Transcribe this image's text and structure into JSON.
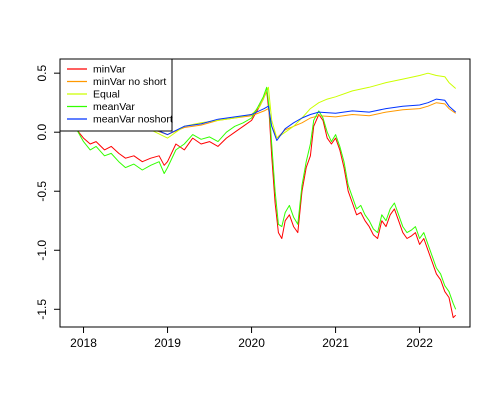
{
  "chart_data": {
    "type": "line",
    "title": "",
    "xlabel": "",
    "ylabel": "",
    "xlim": [
      2017.72,
      2022.6
    ],
    "ylim": [
      -1.65,
      0.62
    ],
    "x_ticks": [
      2018,
      2019,
      2020,
      2021,
      2022
    ],
    "x_tick_labels": [
      "2018",
      "2019",
      "2020",
      "2021",
      "2022"
    ],
    "y_ticks": [
      -1.5,
      -1.0,
      -0.5,
      0.0,
      0.5
    ],
    "y_tick_labels": [
      "-1.5",
      "-1.0",
      "-0.5",
      "0.0",
      "0.5"
    ],
    "grid": false,
    "legend_position": "top-left",
    "series": [
      {
        "name": "minVar",
        "color": "#ff0000",
        "x": [
          2017.92,
          2018.0,
          2018.08,
          2018.15,
          2018.25,
          2018.33,
          2018.42,
          2018.5,
          2018.6,
          2018.7,
          2018.8,
          2018.9,
          2018.96,
          2019.0,
          2019.1,
          2019.2,
          2019.3,
          2019.4,
          2019.5,
          2019.6,
          2019.7,
          2019.8,
          2019.9,
          2020.0,
          2020.08,
          2020.14,
          2020.18,
          2020.21,
          2020.24,
          2020.28,
          2020.32,
          2020.36,
          2020.4,
          2020.45,
          2020.5,
          2020.55,
          2020.6,
          2020.65,
          2020.7,
          2020.74,
          2020.8,
          2020.85,
          2020.9,
          2020.95,
          2021.0,
          2021.05,
          2021.1,
          2021.15,
          2021.2,
          2021.25,
          2021.3,
          2021.35,
          2021.4,
          2021.45,
          2021.5,
          2021.55,
          2021.6,
          2021.65,
          2021.7,
          2021.75,
          2021.8,
          2021.85,
          2021.9,
          2021.95,
          2022.0,
          2022.05,
          2022.1,
          2022.15,
          2022.2,
          2022.25,
          2022.3,
          2022.35,
          2022.4,
          2022.43
        ],
        "y": [
          0.02,
          -0.05,
          -0.1,
          -0.08,
          -0.15,
          -0.12,
          -0.18,
          -0.22,
          -0.2,
          -0.25,
          -0.22,
          -0.2,
          -0.28,
          -0.25,
          -0.1,
          -0.15,
          -0.05,
          -0.1,
          -0.08,
          -0.12,
          -0.05,
          0.0,
          0.05,
          0.1,
          0.2,
          0.28,
          0.35,
          0.15,
          -0.2,
          -0.6,
          -0.85,
          -0.9,
          -0.75,
          -0.7,
          -0.8,
          -0.85,
          -0.5,
          -0.3,
          -0.2,
          0.05,
          0.15,
          0.1,
          -0.05,
          -0.1,
          -0.05,
          -0.15,
          -0.3,
          -0.5,
          -0.6,
          -0.7,
          -0.68,
          -0.75,
          -0.8,
          -0.87,
          -0.9,
          -0.75,
          -0.8,
          -0.7,
          -0.65,
          -0.75,
          -0.85,
          -0.9,
          -0.88,
          -0.85,
          -0.95,
          -0.9,
          -1.0,
          -1.1,
          -1.2,
          -1.25,
          -1.35,
          -1.4,
          -1.57,
          -1.55
        ]
      },
      {
        "name": "minVar no short",
        "color": "#ff9900",
        "x": [
          2017.92,
          2018.0,
          2018.2,
          2018.4,
          2018.6,
          2018.8,
          2019.0,
          2019.2,
          2019.4,
          2019.6,
          2019.8,
          2020.0,
          2020.15,
          2020.2,
          2020.24,
          2020.3,
          2020.4,
          2020.5,
          2020.6,
          2020.7,
          2020.8,
          2021.0,
          2021.2,
          2021.4,
          2021.6,
          2021.8,
          2022.0,
          2022.1,
          2022.2,
          2022.3,
          2022.35,
          2022.43
        ],
        "y": [
          0.02,
          0.02,
          0.03,
          0.02,
          0.04,
          0.03,
          -0.02,
          0.04,
          0.06,
          0.1,
          0.12,
          0.14,
          0.18,
          0.2,
          0.05,
          -0.05,
          0.02,
          0.05,
          0.08,
          0.12,
          0.14,
          0.13,
          0.15,
          0.14,
          0.17,
          0.19,
          0.2,
          0.22,
          0.25,
          0.24,
          0.2,
          0.16
        ]
      },
      {
        "name": "Equal",
        "color": "#ccff00",
        "x": [
          2017.92,
          2018.0,
          2018.2,
          2018.4,
          2018.6,
          2018.8,
          2019.0,
          2019.2,
          2019.4,
          2019.6,
          2019.8,
          2020.0,
          2020.1,
          2020.15,
          2020.2,
          2020.24,
          2020.3,
          2020.4,
          2020.5,
          2020.6,
          2020.7,
          2020.8,
          2020.9,
          2021.0,
          2021.2,
          2021.4,
          2021.6,
          2021.8,
          2022.0,
          2022.1,
          2022.2,
          2022.3,
          2022.35,
          2022.43
        ],
        "y": [
          0.02,
          0.02,
          0.05,
          0.02,
          0.05,
          0.02,
          -0.05,
          0.05,
          0.08,
          0.1,
          0.12,
          0.15,
          0.22,
          0.3,
          0.38,
          0.1,
          -0.05,
          0.0,
          0.05,
          0.12,
          0.2,
          0.25,
          0.28,
          0.3,
          0.35,
          0.38,
          0.42,
          0.45,
          0.48,
          0.5,
          0.48,
          0.47,
          0.42,
          0.37
        ]
      },
      {
        "name": "meanVar",
        "color": "#33ff00",
        "x": [
          2017.92,
          2018.0,
          2018.08,
          2018.15,
          2018.25,
          2018.33,
          2018.42,
          2018.5,
          2018.6,
          2018.7,
          2018.8,
          2018.9,
          2018.96,
          2019.0,
          2019.1,
          2019.2,
          2019.3,
          2019.4,
          2019.5,
          2019.6,
          2019.7,
          2019.8,
          2019.9,
          2020.0,
          2020.08,
          2020.14,
          2020.18,
          2020.21,
          2020.24,
          2020.28,
          2020.32,
          2020.36,
          2020.4,
          2020.45,
          2020.5,
          2020.55,
          2020.6,
          2020.65,
          2020.7,
          2020.74,
          2020.8,
          2020.85,
          2020.9,
          2020.95,
          2021.0,
          2021.05,
          2021.1,
          2021.15,
          2021.2,
          2021.25,
          2021.3,
          2021.35,
          2021.4,
          2021.45,
          2021.5,
          2021.55,
          2021.6,
          2021.65,
          2021.7,
          2021.75,
          2021.8,
          2021.85,
          2021.9,
          2021.95,
          2022.0,
          2022.05,
          2022.1,
          2022.15,
          2022.2,
          2022.25,
          2022.3,
          2022.35,
          2022.4,
          2022.43
        ],
        "y": [
          0.02,
          -0.08,
          -0.15,
          -0.12,
          -0.2,
          -0.18,
          -0.25,
          -0.3,
          -0.27,
          -0.32,
          -0.28,
          -0.25,
          -0.35,
          -0.3,
          -0.15,
          -0.1,
          -0.02,
          -0.06,
          -0.04,
          -0.08,
          0.0,
          0.05,
          0.08,
          0.12,
          0.22,
          0.3,
          0.38,
          0.2,
          -0.1,
          -0.5,
          -0.78,
          -0.8,
          -0.68,
          -0.62,
          -0.72,
          -0.78,
          -0.45,
          -0.25,
          -0.1,
          0.1,
          0.18,
          0.12,
          0.0,
          -0.08,
          -0.02,
          -0.12,
          -0.25,
          -0.45,
          -0.55,
          -0.65,
          -0.62,
          -0.7,
          -0.75,
          -0.82,
          -0.85,
          -0.7,
          -0.75,
          -0.65,
          -0.6,
          -0.7,
          -0.8,
          -0.85,
          -0.83,
          -0.8,
          -0.9,
          -0.85,
          -0.95,
          -1.05,
          -1.15,
          -1.2,
          -1.3,
          -1.35,
          -1.45,
          -1.5
        ]
      },
      {
        "name": "meanVar noshort",
        "color": "#0033ff",
        "x": [
          2017.92,
          2018.0,
          2018.2,
          2018.4,
          2018.6,
          2018.8,
          2019.0,
          2019.2,
          2019.4,
          2019.6,
          2019.8,
          2020.0,
          2020.15,
          2020.2,
          2020.24,
          2020.3,
          2020.4,
          2020.5,
          2020.6,
          2020.7,
          2020.8,
          2021.0,
          2021.2,
          2021.4,
          2021.6,
          2021.8,
          2022.0,
          2022.1,
          2022.2,
          2022.3,
          2022.35,
          2022.43
        ],
        "y": [
          0.02,
          0.02,
          0.03,
          0.03,
          0.05,
          0.04,
          -0.02,
          0.05,
          0.07,
          0.11,
          0.13,
          0.15,
          0.2,
          0.22,
          0.05,
          -0.07,
          0.03,
          0.08,
          0.12,
          0.15,
          0.17,
          0.16,
          0.18,
          0.17,
          0.2,
          0.22,
          0.23,
          0.25,
          0.28,
          0.27,
          0.22,
          0.17
        ]
      }
    ]
  }
}
